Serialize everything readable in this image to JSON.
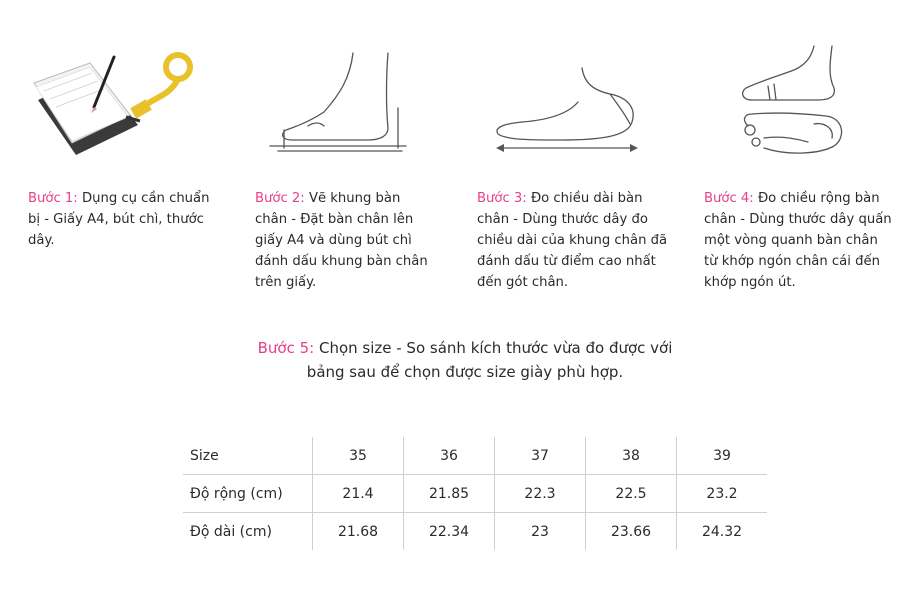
{
  "steps": [
    {
      "label": "Bước 1:",
      "text": "Dụng cụ cần chuẩn bị - Giấy A4, bút chì, thước dây."
    },
    {
      "label": "Bước 2:",
      "text": "Vẽ khung bàn chân - Đặt bàn chân lên giấy A4 và dùng bút chì đánh dấu khung bàn chân trên giấy."
    },
    {
      "label": "Bước 3:",
      "text": "Đo chiều dài bàn chân - Dùng thước dây đo chiều dài của khung chân đã đánh dấu từ điểm cao nhất đến gót chân."
    },
    {
      "label": "Bước 4:",
      "text": "Đo chiều rộng bàn chân - Dùng thước dây quấn một vòng quanh bàn chân từ khớp ngón chân cái đến khớp ngón út."
    }
  ],
  "step5": {
    "label": "Bước 5:",
    "text": "Chọn size - So sánh kích thước vừa đo được với bảng sau để chọn được size giày phù hợp."
  },
  "size_table": {
    "rows": [
      {
        "name": "Size",
        "values": [
          "35",
          "36",
          "37",
          "38",
          "39"
        ]
      },
      {
        "name": "Độ rộng (cm)",
        "values": [
          "21.4",
          "21.85",
          "22.3",
          "22.5",
          "23.2"
        ]
      },
      {
        "name": "Độ dài (cm)",
        "values": [
          "21.68",
          "22.34",
          "23",
          "23.66",
          "24.32"
        ]
      }
    ]
  },
  "icons": [
    "notebook-pencil-tape-icon",
    "foot-outline-on-paper-icon",
    "foot-length-measure-icon",
    "foot-width-measure-icon"
  ],
  "colors": {
    "accent": "#e6408a",
    "text": "#2b2b2b",
    "line": "#555555"
  }
}
